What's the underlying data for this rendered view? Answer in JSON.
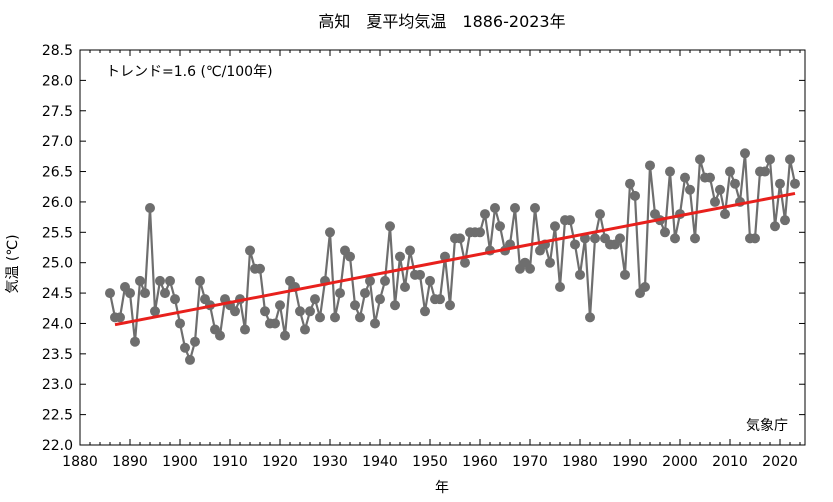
{
  "chart_data": {
    "type": "line",
    "title": "高知　夏平均気温　1886-2023年",
    "xlabel": "年",
    "ylabel": "気温 (℃)",
    "trend_label": "トレンド=1.6 (℃/100年)",
    "source_label": "気象庁",
    "xlim": [
      1880,
      2025
    ],
    "ylim": [
      22.0,
      28.5
    ],
    "x_ticks": [
      "1880",
      "1890",
      "1900",
      "1910",
      "1920",
      "1930",
      "1940",
      "1950",
      "1960",
      "1970",
      "1980",
      "1990",
      "2000",
      "2010",
      "2020"
    ],
    "y_ticks": [
      "22.0",
      "22.5",
      "23.0",
      "23.5",
      "24.0",
      "24.5",
      "25.0",
      "25.5",
      "26.0",
      "26.5",
      "27.0",
      "27.5",
      "28.0",
      "28.5"
    ],
    "grid": false,
    "colors": {
      "series": "#6e6e6e",
      "trend": "#e8201c",
      "axis": "#000000"
    },
    "series": [
      {
        "x": [
          1886,
          1887,
          1888,
          1889,
          1890,
          1891,
          1892,
          1893,
          1894,
          1895,
          1896,
          1897,
          1898,
          1899,
          1900,
          1901,
          1902,
          1903,
          1904,
          1905,
          1906,
          1907,
          1908,
          1909,
          1910,
          1911,
          1912,
          1913,
          1914,
          1915,
          1916,
          1917,
          1918,
          1919,
          1920,
          1921,
          1922,
          1923,
          1924,
          1925,
          1926,
          1927,
          1928,
          1929,
          1930,
          1931,
          1932,
          1933,
          1934,
          1935,
          1936,
          1937,
          1938,
          1939,
          1940,
          1941,
          1942,
          1943,
          1944,
          1945,
          1946,
          1947,
          1948,
          1949,
          1950,
          1951,
          1952,
          1953,
          1954,
          1955,
          1956,
          1957,
          1958,
          1959,
          1960,
          1961,
          1962,
          1963,
          1964,
          1965,
          1966,
          1967,
          1968,
          1969,
          1970,
          1971,
          1972,
          1973,
          1974,
          1975,
          1976,
          1977,
          1978,
          1979,
          1980,
          1981,
          1982,
          1983,
          1984,
          1985,
          1986,
          1987,
          1988,
          1989,
          1990,
          1991,
          1992,
          1993,
          1994,
          1995,
          1996,
          1997,
          1998,
          1999,
          2000,
          2001,
          2002,
          2003,
          2004,
          2005,
          2006,
          2007,
          2008,
          2009,
          2010,
          2011,
          2012,
          2013,
          2014,
          2015,
          2016,
          2017,
          2018,
          2019,
          2020,
          2021,
          2022,
          2023
        ],
        "values": [
          24.5,
          24.1,
          24.1,
          24.6,
          24.5,
          23.7,
          24.7,
          24.5,
          25.9,
          24.2,
          24.7,
          24.5,
          24.7,
          24.4,
          24.0,
          23.6,
          23.4,
          23.7,
          24.7,
          24.4,
          24.3,
          23.9,
          23.8,
          24.4,
          24.3,
          24.2,
          24.4,
          23.9,
          25.2,
          24.9,
          24.9,
          24.2,
          24.0,
          24.0,
          24.3,
          23.8,
          24.7,
          24.6,
          24.2,
          23.9,
          24.2,
          24.4,
          24.1,
          24.7,
          25.5,
          24.1,
          24.5,
          25.2,
          25.1,
          24.3,
          24.1,
          24.5,
          24.7,
          24.0,
          24.4,
          24.7,
          25.6,
          24.3,
          25.1,
          24.6,
          25.2,
          24.8,
          24.8,
          24.2,
          24.7,
          24.4,
          24.4,
          25.1,
          24.3,
          25.4,
          25.4,
          25.0,
          25.5,
          25.5,
          25.5,
          25.8,
          25.2,
          25.9,
          25.6,
          25.2,
          25.3,
          25.9,
          24.9,
          25.0,
          24.9,
          25.9,
          25.2,
          25.3,
          25.0,
          25.6,
          24.6,
          25.7,
          25.7,
          25.3,
          24.8,
          25.4,
          24.1,
          25.4,
          25.8,
          25.4,
          25.3,
          25.3,
          25.4,
          24.8,
          26.3,
          26.1,
          24.5,
          24.6,
          26.6,
          25.8,
          25.7,
          25.5,
          26.5,
          25.4,
          25.8,
          26.4,
          26.2,
          25.4,
          26.7,
          26.4,
          26.4,
          26.0,
          26.2,
          25.8,
          26.5,
          26.3,
          26.0,
          26.8,
          25.4,
          25.4,
          26.5,
          26.5,
          26.7,
          25.6,
          26.3,
          25.7,
          26.7,
          26.3
        ]
      }
    ],
    "trend": {
      "x": [
        1887,
        2023
      ],
      "values": [
        23.98,
        26.14
      ]
    }
  }
}
